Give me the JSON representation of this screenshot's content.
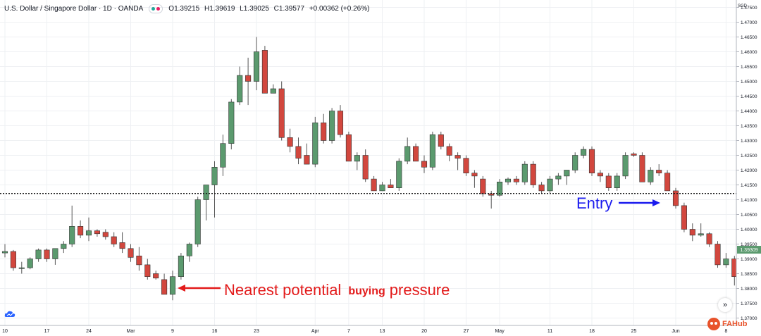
{
  "header": {
    "symbol": "U.S. Dollar / Singapore Dollar · 1D · OANDA",
    "open": "O1.39215",
    "high": "H1.39619",
    "low": "L1.39025",
    "close": "C1.39577",
    "change": "+0.00362 (+0.26%)",
    "indicator_colors": [
      "#26a69a",
      "#e91e63"
    ]
  },
  "currency": "SGD",
  "last_price_label": "1.39309",
  "logo_text": "FAHub",
  "colors": {
    "up": "#5b9a6e",
    "down": "#d2473e",
    "annotation": "#e31b1b",
    "entry": "#1a1aee",
    "grid": "#eef0f3",
    "last_price": "#5b9a6e"
  },
  "icons": {
    "cloud": "cloud-icon",
    "scroll": "double-chevron-right-icon",
    "logo": "fahub-logo-icon"
  },
  "chart_data": {
    "type": "candlestick",
    "title": "",
    "ylim": [
      1.3675,
      1.4775
    ],
    "y_ticks": [
      1.475,
      1.47,
      1.465,
      1.46,
      1.455,
      1.45,
      1.445,
      1.44,
      1.435,
      1.43,
      1.425,
      1.42,
      1.415,
      1.41,
      1.405,
      1.4,
      1.395,
      1.39,
      1.385,
      1.38,
      1.375,
      1.37
    ],
    "y_tick_labels": [
      "1.47500",
      "1.47000",
      "1.46500",
      "1.46000",
      "1.45500",
      "1.45000",
      "1.44500",
      "1.44000",
      "1.43500",
      "1.43000",
      "1.42500",
      "1.42000",
      "1.41500",
      "1.41000",
      "1.40500",
      "1.40000",
      "1.39500",
      "1.39000",
      "1.38500",
      "1.38000",
      "1.37500",
      "1.37000"
    ],
    "x_tick_labels": [
      {
        "label": "10",
        "index": 0
      },
      {
        "label": "17",
        "index": 5
      },
      {
        "label": "24",
        "index": 10
      },
      {
        "label": "Mar",
        "index": 15
      },
      {
        "label": "9",
        "index": 20
      },
      {
        "label": "16",
        "index": 25
      },
      {
        "label": "23",
        "index": 30
      },
      {
        "label": "Apr",
        "index": 37
      },
      {
        "label": "7",
        "index": 41
      },
      {
        "label": "13",
        "index": 45
      },
      {
        "label": "20",
        "index": 50
      },
      {
        "label": "27",
        "index": 55
      },
      {
        "label": "May",
        "index": 59
      },
      {
        "label": "11",
        "index": 65
      },
      {
        "label": "18",
        "index": 70
      },
      {
        "label": "25",
        "index": 75
      },
      {
        "label": "Jun",
        "index": 80
      },
      {
        "label": "8",
        "index": 86
      }
    ],
    "candles": [
      [
        1.392,
        1.395,
        1.3905,
        1.3925
      ],
      [
        1.3925,
        1.393,
        1.386,
        1.387
      ],
      [
        1.387,
        1.389,
        1.385,
        1.387
      ],
      [
        1.387,
        1.3905,
        1.3865,
        1.39
      ],
      [
        1.39,
        1.3935,
        1.389,
        1.393
      ],
      [
        1.393,
        1.3935,
        1.389,
        1.39
      ],
      [
        1.39,
        1.393,
        1.388,
        1.3935
      ],
      [
        1.3935,
        1.396,
        1.392,
        1.395
      ],
      [
        1.395,
        1.408,
        1.394,
        1.401
      ],
      [
        1.401,
        1.403,
        1.397,
        1.398
      ],
      [
        1.398,
        1.404,
        1.396,
        1.3995
      ],
      [
        1.3995,
        1.4,
        1.3975,
        1.3985
      ],
      [
        1.399,
        1.4,
        1.3965,
        1.3975
      ],
      [
        1.3975,
        1.399,
        1.394,
        1.395
      ],
      [
        1.3955,
        1.399,
        1.392,
        1.3935
      ],
      [
        1.3935,
        1.395,
        1.389,
        1.3905
      ],
      [
        1.391,
        1.394,
        1.386,
        1.388
      ],
      [
        1.388,
        1.39,
        1.383,
        1.384
      ],
      [
        1.385,
        1.386,
        1.383,
        1.3835
      ],
      [
        1.383,
        1.385,
        1.379,
        1.378
      ],
      [
        1.378,
        1.386,
        1.376,
        1.384
      ],
      [
        1.384,
        1.392,
        1.383,
        1.391
      ],
      [
        1.391,
        1.3955,
        1.389,
        1.395
      ],
      [
        1.395,
        1.411,
        1.394,
        1.41
      ],
      [
        1.41,
        1.415,
        1.403,
        1.415
      ],
      [
        1.415,
        1.423,
        1.404,
        1.421
      ],
      [
        1.421,
        1.432,
        1.418,
        1.429
      ],
      [
        1.429,
        1.444,
        1.427,
        1.443
      ],
      [
        1.443,
        1.455,
        1.442,
        1.452
      ],
      [
        1.452,
        1.458,
        1.442,
        1.45
      ],
      [
        1.45,
        1.465,
        1.447,
        1.46
      ],
      [
        1.4605,
        1.462,
        1.446,
        1.446
      ],
      [
        1.446,
        1.449,
        1.446,
        1.4475
      ],
      [
        1.4475,
        1.45,
        1.43,
        1.431
      ],
      [
        1.431,
        1.434,
        1.426,
        1.428
      ],
      [
        1.428,
        1.431,
        1.422,
        1.424
      ],
      [
        1.425,
        1.429,
        1.422,
        1.422
      ],
      [
        1.422,
        1.438,
        1.421,
        1.436
      ],
      [
        1.436,
        1.439,
        1.429,
        1.43
      ],
      [
        1.43,
        1.441,
        1.429,
        1.44
      ],
      [
        1.44,
        1.442,
        1.431,
        1.432
      ],
      [
        1.432,
        1.433,
        1.423,
        1.423
      ],
      [
        1.423,
        1.426,
        1.42,
        1.425
      ],
      [
        1.425,
        1.427,
        1.416,
        1.417
      ],
      [
        1.417,
        1.418,
        1.413,
        1.413
      ],
      [
        1.413,
        1.416,
        1.413,
        1.415
      ],
      [
        1.415,
        1.417,
        1.414,
        1.414
      ],
      [
        1.414,
        1.424,
        1.413,
        1.423
      ],
      [
        1.423,
        1.431,
        1.422,
        1.428
      ],
      [
        1.428,
        1.429,
        1.423,
        1.423
      ],
      [
        1.423,
        1.425,
        1.419,
        1.421
      ],
      [
        1.421,
        1.433,
        1.42,
        1.432
      ],
      [
        1.432,
        1.433,
        1.427,
        1.428
      ],
      [
        1.428,
        1.429,
        1.423,
        1.425
      ],
      [
        1.425,
        1.426,
        1.42,
        1.424
      ],
      [
        1.424,
        1.425,
        1.418,
        1.419
      ],
      [
        1.419,
        1.42,
        1.414,
        1.418
      ],
      [
        1.417,
        1.418,
        1.411,
        1.412
      ],
      [
        1.412,
        1.413,
        1.407,
        1.4115
      ],
      [
        1.4115,
        1.417,
        1.411,
        1.416
      ],
      [
        1.416,
        1.4175,
        1.415,
        1.417
      ],
      [
        1.417,
        1.418,
        1.415,
        1.416
      ],
      [
        1.416,
        1.423,
        1.415,
        1.422
      ],
      [
        1.422,
        1.423,
        1.414,
        1.415
      ],
      [
        1.415,
        1.416,
        1.412,
        1.413
      ],
      [
        1.413,
        1.418,
        1.412,
        1.417
      ],
      [
        1.417,
        1.419,
        1.415,
        1.418
      ],
      [
        1.418,
        1.42,
        1.415,
        1.42
      ],
      [
        1.42,
        1.426,
        1.419,
        1.425
      ],
      [
        1.425,
        1.428,
        1.424,
        1.427
      ],
      [
        1.427,
        1.428,
        1.418,
        1.419
      ],
      [
        1.419,
        1.42,
        1.416,
        1.418
      ],
      [
        1.418,
        1.419,
        1.413,
        1.414
      ],
      [
        1.414,
        1.419,
        1.413,
        1.418
      ],
      [
        1.418,
        1.426,
        1.417,
        1.425
      ],
      [
        1.4255,
        1.426,
        1.4245,
        1.425
      ],
      [
        1.425,
        1.426,
        1.416,
        1.416
      ],
      [
        1.416,
        1.421,
        1.415,
        1.42
      ],
      [
        1.42,
        1.422,
        1.418,
        1.419
      ],
      [
        1.419,
        1.42,
        1.413,
        1.413
      ],
      [
        1.413,
        1.414,
        1.407,
        1.408
      ],
      [
        1.408,
        1.409,
        1.399,
        1.4
      ],
      [
        1.4,
        1.402,
        1.396,
        1.398
      ],
      [
        1.398,
        1.402,
        1.3975,
        1.3985
      ],
      [
        1.3985,
        1.399,
        1.394,
        1.395
      ],
      [
        1.395,
        1.396,
        1.387,
        1.388
      ],
      [
        1.388,
        1.392,
        1.387,
        1.39
      ],
      [
        1.39,
        1.391,
        1.381,
        1.384
      ],
      [
        1.384,
        1.395,
        1.383,
        1.3935
      ]
    ],
    "horizontal_line": 1.4121,
    "annotations": [
      {
        "text": "Entry",
        "color": "#1a1aee"
      },
      {
        "text": "Nearest potential",
        "highlight": "buying",
        "rest": "pressure",
        "color": "#e31b1b"
      }
    ]
  }
}
